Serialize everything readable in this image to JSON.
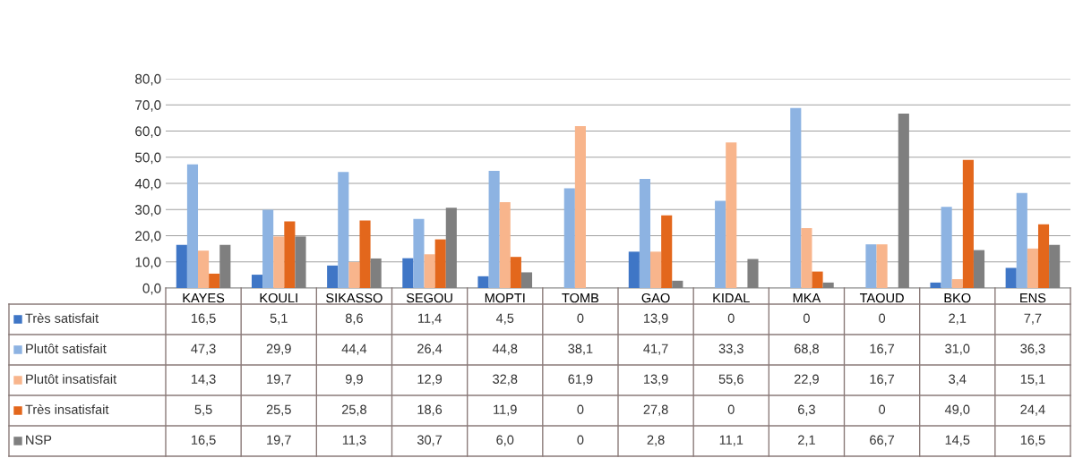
{
  "chart_data": {
    "type": "bar",
    "categories": [
      "KAYES",
      "KOULI",
      "SIKASSO",
      "SEGOU",
      "MOPTI",
      "TOMB",
      "GAO",
      "KIDAL",
      "MKA",
      "TAOUD",
      "BKO",
      "ENS"
    ],
    "series": [
      {
        "name": "Très satisfait",
        "color": "#3f76c6",
        "values": [
          16.5,
          5.1,
          8.6,
          11.4,
          4.5,
          0,
          13.9,
          0,
          0,
          0,
          2.1,
          7.7
        ],
        "value_labels": [
          "16,5",
          "5,1",
          "8,6",
          "11,4",
          "4,5",
          "0",
          "13,9",
          "0",
          "0",
          "0",
          "2,1",
          "7,7"
        ]
      },
      {
        "name": "Plutôt satisfait",
        "color": "#8db3e2",
        "values": [
          47.3,
          29.9,
          44.4,
          26.4,
          44.8,
          38.1,
          41.7,
          33.3,
          68.8,
          16.7,
          31.0,
          36.3
        ],
        "value_labels": [
          "47,3",
          "29,9",
          "44,4",
          "26,4",
          "44,8",
          "38,1",
          "41,7",
          "33,3",
          "68,8",
          "16,7",
          "31,0",
          "36,3"
        ]
      },
      {
        "name": "Plutôt insatisfait",
        "color": "#f8b58c",
        "values": [
          14.3,
          19.7,
          9.9,
          12.9,
          32.8,
          61.9,
          13.9,
          55.6,
          22.9,
          16.7,
          3.4,
          15.1
        ],
        "value_labels": [
          "14,3",
          "19,7",
          "9,9",
          "12,9",
          "32,8",
          "61,9",
          "13,9",
          "55,6",
          "22,9",
          "16,7",
          "3,4",
          "15,1"
        ]
      },
      {
        "name": "Très insatisfait",
        "color": "#e3671c",
        "values": [
          5.5,
          25.5,
          25.8,
          18.6,
          11.9,
          0,
          27.8,
          0,
          6.3,
          0,
          49.0,
          24.4
        ],
        "value_labels": [
          "5,5",
          "25,5",
          "25,8",
          "18,6",
          "11,9",
          "0",
          "27,8",
          "0",
          "6,3",
          "0",
          "49,0",
          "24,4"
        ]
      },
      {
        "name": "NSP",
        "color": "#7f7f7f",
        "values": [
          16.5,
          19.7,
          11.3,
          30.7,
          6.0,
          0,
          2.8,
          11.1,
          2.1,
          66.7,
          14.5,
          16.5
        ],
        "value_labels": [
          "16,5",
          "19,7",
          "11,3",
          "30,7",
          "6,0",
          "0",
          "2,8",
          "11,1",
          "2,1",
          "66,7",
          "14,5",
          "16,5"
        ]
      }
    ],
    "ylim": [
      0,
      80
    ],
    "yticks": [
      {
        "value": 0,
        "label": "0,0"
      },
      {
        "value": 10,
        "label": "10,0"
      },
      {
        "value": 20,
        "label": "20,0"
      },
      {
        "value": 30,
        "label": "30,0"
      },
      {
        "value": 40,
        "label": "40,0"
      },
      {
        "value": 50,
        "label": "50,0"
      },
      {
        "value": 60,
        "label": "60,0"
      },
      {
        "value": 70,
        "label": "70,0"
      },
      {
        "value": 80,
        "label": "80,0"
      }
    ],
    "grid": "y",
    "legend": "bottom"
  }
}
